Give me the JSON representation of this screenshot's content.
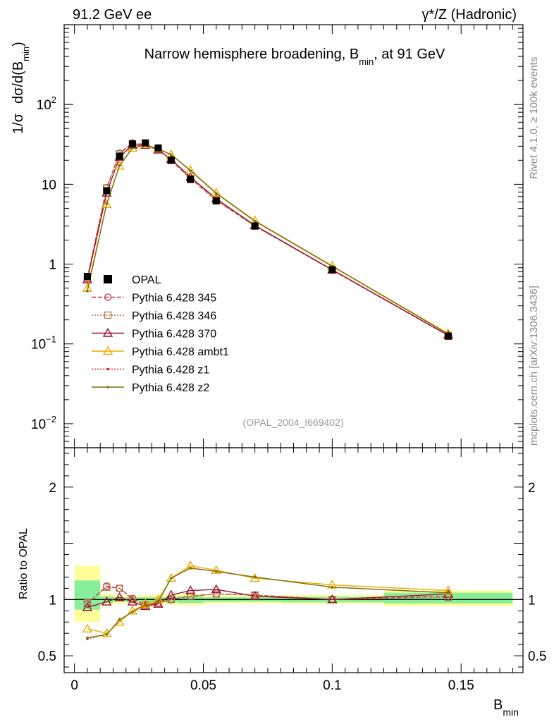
{
  "header": {
    "left": "91.2 GeV ee",
    "right": "γ*/Z (Hadronic)"
  },
  "side_labels": {
    "rivet": "Rivet 4.1.0, ≥ 100k events",
    "source": "mcplots.cern.ch [arXiv:1306.3436]"
  },
  "chart_data": [
    {
      "type": "line",
      "panel": "main",
      "title": "Narrow hemisphere broadening, B_min, at 91 GeV",
      "title_parts": {
        "pre": "Narrow hemisphere broadening, B",
        "sub": "min",
        "post": ", at 91 GeV"
      },
      "ylabel_parts": {
        "a": "1/σ",
        "b": "dσ/d(B",
        "sub": "min",
        "c": ")"
      },
      "analysis_tag": "(OPAL_2004_I669402)",
      "yscale": "log",
      "xlim": [
        -0.004,
        0.174
      ],
      "ylim": [
        0.005,
        1000
      ],
      "yticks": [
        {
          "value": 0.01,
          "base": "10",
          "exp": "−2"
        },
        {
          "value": 0.1,
          "base": "10",
          "exp": "−1"
        },
        {
          "value": 1,
          "label": "1"
        },
        {
          "value": 10,
          "label": "10"
        },
        {
          "value": 100,
          "base": "10",
          "exp": "2"
        }
      ],
      "x": [
        0.005,
        0.0125,
        0.0175,
        0.0225,
        0.0275,
        0.0325,
        0.0375,
        0.045,
        0.055,
        0.07,
        0.1,
        0.145
      ],
      "data": {
        "name": "OPAL",
        "values": [
          0.7,
          8.3,
          22.5,
          32.0,
          33.0,
          28.5,
          20.0,
          11.5,
          6.2,
          3.0,
          0.85,
          0.125
        ]
      },
      "series": [
        {
          "name": "Pythia 6.428 345",
          "color": "#cc3344",
          "style": "dashed",
          "marker": "circle",
          "values": [
            0.66,
            9.1,
            24.5,
            33.0,
            31.5,
            27.5,
            20.0,
            11.8,
            6.3,
            3.0,
            0.84,
            0.127
          ]
        },
        {
          "name": "Pythia 6.428 346",
          "color": "#aa7744",
          "style": "dotted",
          "marker": "square",
          "values": [
            0.68,
            9.0,
            24.0,
            32.0,
            31.0,
            27.5,
            20.0,
            11.8,
            6.3,
            3.0,
            0.84,
            0.127
          ]
        },
        {
          "name": "Pythia 6.428 370",
          "color": "#991133",
          "style": "solid",
          "marker": "triangle",
          "values": [
            0.64,
            7.8,
            22.0,
            31.0,
            31.0,
            27.0,
            20.5,
            12.3,
            6.6,
            3.05,
            0.85,
            0.128
          ]
        },
        {
          "name": "Pythia 6.428 ambt1",
          "color": "#eeaa00",
          "style": "solid",
          "marker": "triangle",
          "values": [
            0.5,
            5.6,
            17.0,
            28.5,
            31.5,
            28.0,
            23.5,
            15.0,
            7.8,
            3.5,
            0.95,
            0.135
          ]
        },
        {
          "name": "Pythia 6.428 z1",
          "color": "#dd2222",
          "style": "dotted",
          "marker": "dot",
          "values": [
            0.46,
            5.7,
            17.2,
            28.5,
            31.0,
            27.5,
            23.5,
            14.8,
            7.7,
            3.45,
            0.94,
            0.133
          ]
        },
        {
          "name": "Pythia 6.428 z2",
          "color": "#777711",
          "style": "solid",
          "marker": "dot",
          "values": [
            0.46,
            5.7,
            17.2,
            28.5,
            31.0,
            27.5,
            23.5,
            14.8,
            7.7,
            3.45,
            0.94,
            0.133
          ]
        }
      ]
    },
    {
      "type": "line",
      "panel": "ratio",
      "ylabel": "Ratio to OPAL",
      "xlabel_parts": {
        "base": "B",
        "sub": "min"
      },
      "xlim": [
        -0.004,
        0.174
      ],
      "ylim": [
        0.35,
        2.35
      ],
      "xticks": [
        {
          "value": 0,
          "label": "0"
        },
        {
          "value": 0.05,
          "label": "0.05"
        },
        {
          "value": 0.1,
          "label": "0.1"
        },
        {
          "value": 0.15,
          "label": "0.15"
        }
      ],
      "yticks": [
        {
          "value": 0.5,
          "label": "0.5"
        },
        {
          "value": 1,
          "label": "1"
        },
        {
          "value": 2,
          "label": "2"
        }
      ],
      "bands": [
        {
          "x0": 0.0,
          "x1": 0.01,
          "stat": [
            0.91,
            1.17
          ],
          "total": [
            0.8,
            1.3
          ]
        },
        {
          "x0": 0.01,
          "x1": 0.015,
          "stat": [
            0.97,
            1.03
          ],
          "total": [
            0.95,
            1.05
          ]
        },
        {
          "x0": 0.015,
          "x1": 0.02,
          "stat": [
            0.98,
            1.02
          ],
          "total": [
            0.96,
            1.04
          ]
        },
        {
          "x0": 0.02,
          "x1": 0.025,
          "stat": [
            0.98,
            1.02
          ],
          "total": [
            0.97,
            1.03
          ]
        },
        {
          "x0": 0.025,
          "x1": 0.03,
          "stat": [
            0.98,
            1.02
          ],
          "total": [
            0.96,
            1.04
          ]
        },
        {
          "x0": 0.03,
          "x1": 0.035,
          "stat": [
            0.98,
            1.02
          ],
          "total": [
            0.96,
            1.04
          ]
        },
        {
          "x0": 0.035,
          "x1": 0.04,
          "stat": [
            0.975,
            1.025
          ],
          "total": [
            0.955,
            1.045
          ]
        },
        {
          "x0": 0.04,
          "x1": 0.05,
          "stat": [
            0.97,
            1.03
          ],
          "total": [
            0.95,
            1.05
          ]
        },
        {
          "x0": 0.05,
          "x1": 0.06,
          "stat": [
            0.98,
            1.02
          ],
          "total": [
            0.965,
            1.035
          ]
        },
        {
          "x0": 0.06,
          "x1": 0.08,
          "stat": [
            0.98,
            1.02
          ],
          "total": [
            0.965,
            1.035
          ]
        },
        {
          "x0": 0.08,
          "x1": 0.12,
          "stat": [
            0.975,
            1.025
          ],
          "total": [
            0.96,
            1.04
          ]
        },
        {
          "x0": 0.12,
          "x1": 0.17,
          "stat": [
            0.965,
            1.06
          ],
          "total": [
            0.94,
            1.08
          ]
        }
      ],
      "x": [
        0.005,
        0.0125,
        0.0175,
        0.0225,
        0.0275,
        0.0325,
        0.0375,
        0.045,
        0.055,
        0.07,
        0.1,
        0.145
      ],
      "series": [
        {
          "name": "Pythia 6.428 345",
          "values": [
            0.96,
            1.12,
            1.1,
            1.01,
            0.95,
            0.97,
            1.0,
            1.03,
            1.05,
            1.04,
            1.0,
            1.03
          ]
        },
        {
          "name": "Pythia 6.428 346",
          "values": [
            0.97,
            1.11,
            1.1,
            1.0,
            0.95,
            0.97,
            1.0,
            1.03,
            1.05,
            1.04,
            1.0,
            1.02
          ]
        },
        {
          "name": "Pythia 6.428 370",
          "values": [
            0.93,
            0.98,
            1.02,
            0.98,
            0.94,
            0.96,
            1.04,
            1.08,
            1.09,
            1.03,
            1.0,
            1.05
          ]
        },
        {
          "name": "Pythia 6.428 ambt1",
          "values": [
            0.74,
            0.7,
            0.8,
            0.9,
            0.96,
            1.0,
            1.19,
            1.3,
            1.26,
            1.19,
            1.13,
            1.08
          ]
        },
        {
          "name": "Pythia 6.428 z1",
          "values": [
            0.65,
            0.69,
            0.82,
            0.89,
            0.95,
            0.98,
            1.19,
            1.28,
            1.25,
            1.2,
            1.11,
            1.06
          ]
        },
        {
          "name": "Pythia 6.428 z2",
          "values": [
            0.66,
            0.69,
            0.82,
            0.89,
            0.95,
            0.98,
            1.19,
            1.28,
            1.25,
            1.2,
            1.11,
            1.06
          ]
        }
      ]
    }
  ]
}
